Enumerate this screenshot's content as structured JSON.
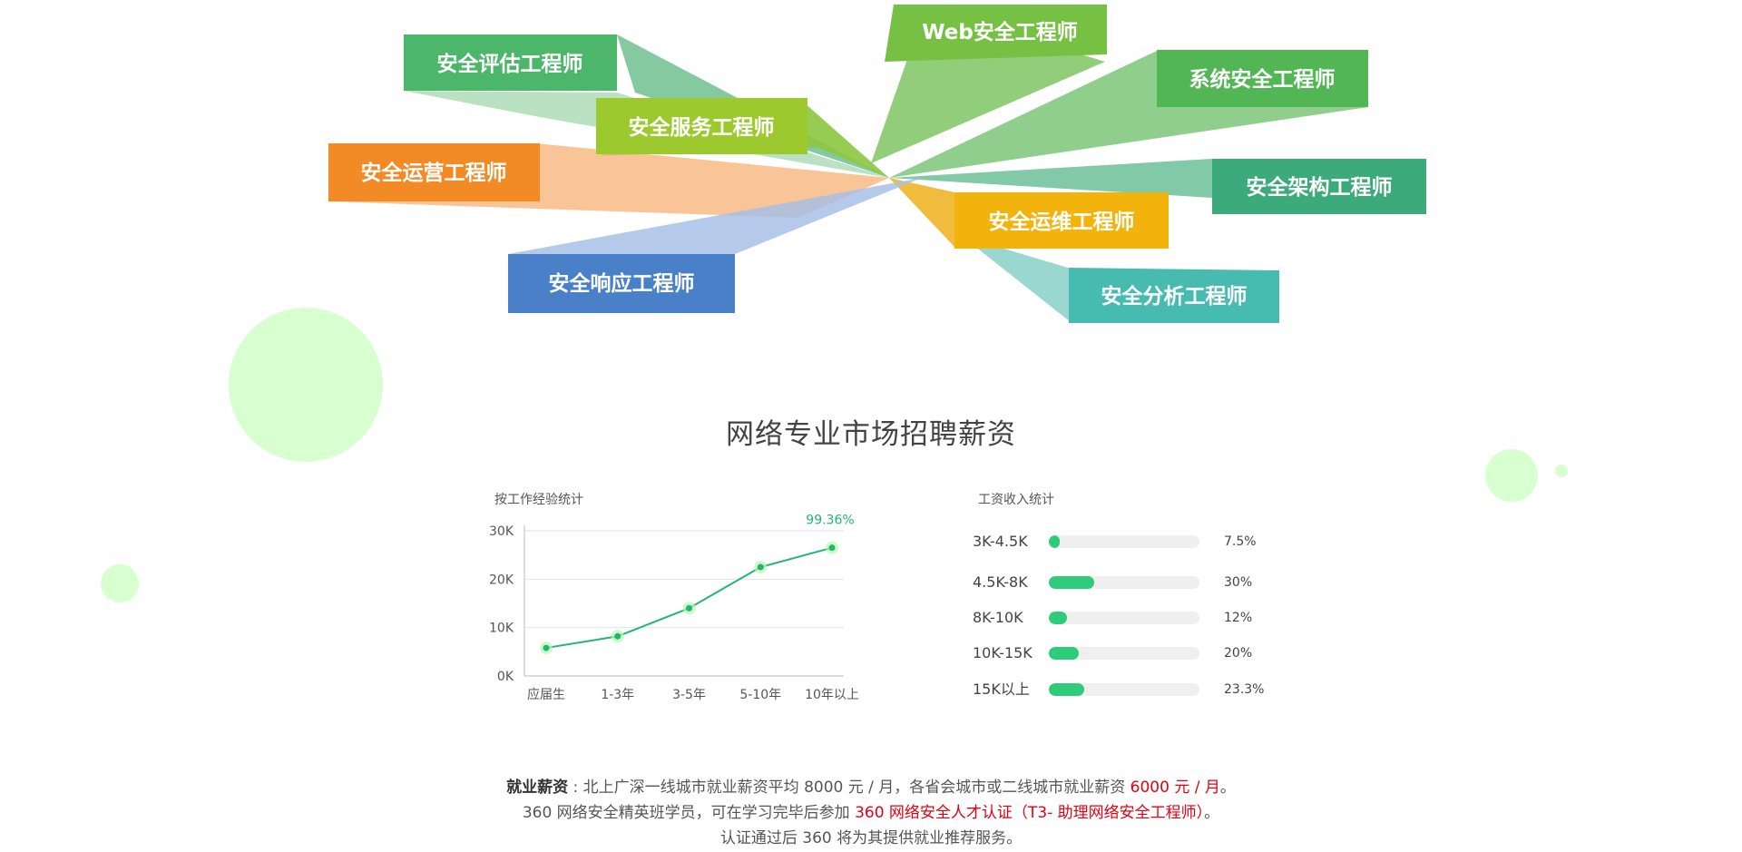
{
  "career_roles": {
    "web": "Web安全工程师",
    "assessment": "安全评估工程师",
    "system": "系统安全工程师",
    "service": "安全服务工程师",
    "operations": "安全运营工程师",
    "architecture": "安全架构工程师",
    "maintenance": "安全运维工程师",
    "response": "安全响应工程师",
    "analysis": "安全分析工程师"
  },
  "colors": {
    "accent": "#2ecc7a",
    "line": "#22b573",
    "highlight": "#e60012"
  },
  "section_title": "网络专业市场招聘薪资",
  "chart_data": [
    {
      "type": "line",
      "title": "按工作经验统计",
      "categories": [
        "应届生",
        "1-3年",
        "3-5年",
        "5-10年",
        "10年以上"
      ],
      "values": [
        5800,
        8200,
        14000,
        22500,
        26500
      ],
      "yticks": [
        "30K",
        "20K",
        "10K",
        "0K"
      ],
      "ylim": [
        0,
        30000
      ],
      "annotation": "99.36%",
      "grid": true
    },
    {
      "type": "bar",
      "title": "工资收入统计",
      "categories": [
        "3K-4.5K",
        "4.5K-8K",
        "8K-10K",
        "10K-15K",
        "15K以上"
      ],
      "values": [
        7.5,
        30,
        12,
        20,
        23.3
      ],
      "labels": [
        "7.5%",
        "30%",
        "12%",
        "20%",
        "23.3%"
      ]
    }
  ],
  "footer": {
    "line1_lead": "就业薪资",
    "line1_text": " : 北上广深一线城市就业薪资平均 8000 元 / 月，各省会城市或二线城市就业薪资 ",
    "line1_highlight": "6000 元 / 月",
    "line1_end": "。",
    "line2_text": "360 网络安全精英班学员，可在学习完毕后参加 ",
    "line2_highlight": "360 网络安全人才认证（T3- 助理网络安全工程师）",
    "line2_end": "。",
    "line3_text": "认证通过后 360 将为其提供就业推荐服务。"
  }
}
